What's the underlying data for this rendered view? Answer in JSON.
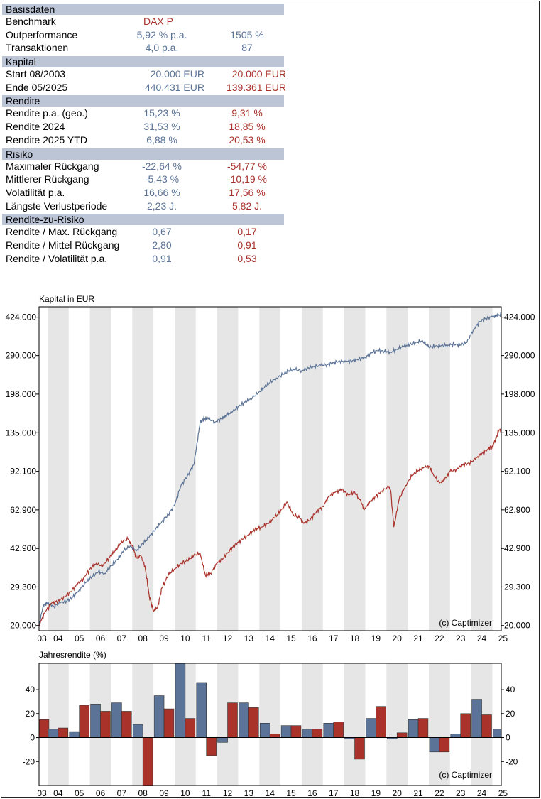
{
  "stats": {
    "sections": [
      {
        "title": "Basisdaten",
        "rows": [
          {
            "label": "Benchmark",
            "v1": "",
            "v2": "DAX P",
            "v2left": true
          },
          {
            "label": "Outperformance",
            "v1": "5,92 % p.a.",
            "v2": "1505 %",
            "v2blue": true
          },
          {
            "label": "Transaktionen",
            "v1": "4,0 p.a.",
            "v2": "87",
            "v2blue": true
          }
        ]
      },
      {
        "title": "Kapital",
        "rows": [
          {
            "label": "Start  08/2003",
            "v1": "20.000 EUR",
            "v2": "20.000 EUR",
            "right": true
          },
          {
            "label": "Ende  05/2025",
            "v1": "440.431 EUR",
            "v2": "139.361 EUR",
            "right": true
          }
        ]
      },
      {
        "title": "Rendite",
        "rows": [
          {
            "label": "Rendite p.a. (geo.)",
            "v1": "15,23 %",
            "v2": "9,31 %"
          },
          {
            "label": "Rendite 2024",
            "v1": "31,53 %",
            "v2": "18,85 %"
          },
          {
            "label": "Rendite 2025 YTD",
            "v1": "6,88 %",
            "v2": "20,53 %"
          }
        ]
      },
      {
        "title": "Risiko",
        "rows": [
          {
            "label": "Maximaler Rückgang",
            "v1": "-22,64 %",
            "v2": "-54,77 %"
          },
          {
            "label": "Mittlerer Rückgang",
            "v1": "-5,43 %",
            "v2": "-10,19 %"
          },
          {
            "label": "Volatilität p.a.",
            "v1": "16,66 %",
            "v2": "17,56 %"
          },
          {
            "label": "Längste Verlustperiode",
            "v1": "2,23 J.",
            "v2": "5,82 J."
          }
        ]
      },
      {
        "title": "Rendite-zu-Risiko",
        "rows": [
          {
            "label": "Rendite / Max. Rückgang",
            "v1": "0,67",
            "v2": "0,17"
          },
          {
            "label": "Rendite / Mittel Rückgang",
            "v1": "2,80",
            "v2": "0,91"
          },
          {
            "label": "Rendite / Volatilität p.a.",
            "v1": "0,91",
            "v2": "0,53"
          }
        ]
      }
    ]
  },
  "chart_data": [
    {
      "type": "line",
      "title": "Kapital in EUR",
      "watermark": "(c) Captimizer",
      "y_scale": "log",
      "y_ticks": [
        20000,
        29300,
        42900,
        62900,
        92100,
        135000,
        198000,
        290000,
        424000
      ],
      "y_tick_labels": [
        "20.000",
        "29.300",
        "42.900",
        "62.900",
        "92.100",
        "135.000",
        "198.000",
        "290.000",
        "424.000"
      ],
      "ylim": [
        19000,
        470000
      ],
      "xlim": [
        2003.6,
        2025.42
      ],
      "x_tick_labels": [
        "03",
        "04",
        "05",
        "06",
        "07",
        "08",
        "09",
        "10",
        "11",
        "12",
        "13",
        "14",
        "15",
        "16",
        "17",
        "18",
        "19",
        "20",
        "21",
        "22",
        "23",
        "24",
        "25"
      ],
      "grid": "alternating shaded years",
      "colors": {
        "strategy": "#5b7396",
        "benchmark": "#a9322b",
        "shade": "#e6e6e6"
      },
      "series": [
        {
          "key": "strategy",
          "x": [
            2003.6,
            2003.8,
            2004.0,
            2004.3,
            2004.6,
            2004.9,
            2005.2,
            2005.5,
            2005.8,
            2006.1,
            2006.4,
            2006.7,
            2007.0,
            2007.3,
            2007.6,
            2007.9,
            2008.2,
            2008.5,
            2008.8,
            2009.1,
            2009.4,
            2009.7,
            2010.0,
            2010.3,
            2010.6,
            2010.9,
            2011.1,
            2011.2,
            2011.4,
            2011.6,
            2011.9,
            2012.2,
            2012.4,
            2012.7,
            2013.0,
            2013.3,
            2013.6,
            2013.9,
            2014.2,
            2014.5,
            2014.8,
            2015.1,
            2015.4,
            2015.7,
            2016.0,
            2016.3,
            2016.6,
            2016.9,
            2017.2,
            2017.5,
            2017.8,
            2018.1,
            2018.4,
            2018.7,
            2019.0,
            2019.3,
            2019.6,
            2019.9,
            2020.2,
            2020.5,
            2020.8,
            2021.1,
            2021.4,
            2021.7,
            2022.0,
            2022.3,
            2022.6,
            2022.9,
            2023.2,
            2023.5,
            2023.8,
            2024.1,
            2024.4,
            2024.7,
            2025.0,
            2025.2,
            2025.42
          ],
          "y": [
            20000,
            24500,
            25000,
            24200,
            25000,
            25500,
            26500,
            28500,
            30500,
            32500,
            34000,
            33500,
            36000,
            38500,
            42000,
            44000,
            42000,
            45000,
            48000,
            52000,
            56000,
            60000,
            66000,
            80000,
            88000,
            98000,
            128000,
            150000,
            155000,
            155000,
            150000,
            155000,
            160000,
            165000,
            175000,
            182000,
            190000,
            198000,
            210000,
            222000,
            232000,
            240000,
            250000,
            252000,
            250000,
            256000,
            260000,
            263000,
            265000,
            270000,
            275000,
            272000,
            276000,
            280000,
            285000,
            298000,
            305000,
            302000,
            300000,
            308000,
            318000,
            323000,
            330000,
            336000,
            315000,
            318000,
            320000,
            322000,
            324000,
            322000,
            330000,
            375000,
            405000,
            420000,
            425000,
            430000,
            435000
          ]
        },
        {
          "key": "benchmark",
          "x": [
            2003.6,
            2003.9,
            2004.2,
            2004.5,
            2004.8,
            2005.1,
            2005.4,
            2005.7,
            2006.0,
            2006.3,
            2006.6,
            2006.9,
            2007.2,
            2007.5,
            2007.8,
            2008.0,
            2008.2,
            2008.4,
            2008.6,
            2008.8,
            2009.0,
            2009.2,
            2009.4,
            2009.7,
            2010.0,
            2010.3,
            2010.6,
            2010.9,
            2011.2,
            2011.45,
            2011.7,
            2012.0,
            2012.3,
            2012.6,
            2012.9,
            2013.2,
            2013.5,
            2013.8,
            2014.1,
            2014.4,
            2014.7,
            2015.0,
            2015.3,
            2015.6,
            2015.9,
            2016.1,
            2016.4,
            2016.7,
            2017.0,
            2017.3,
            2017.6,
            2017.9,
            2018.2,
            2018.5,
            2018.8,
            2018.95,
            2019.2,
            2019.5,
            2019.8,
            2020.1,
            2020.2,
            2020.35,
            2020.6,
            2020.9,
            2021.2,
            2021.5,
            2021.8,
            2022.0,
            2022.2,
            2022.5,
            2022.75,
            2023.0,
            2023.3,
            2023.6,
            2023.9,
            2024.2,
            2024.5,
            2024.8,
            2025.0,
            2025.15,
            2025.3,
            2025.42
          ],
          "y": [
            20000,
            23000,
            25000,
            25500,
            26500,
            28000,
            30000,
            32000,
            35000,
            37000,
            36000,
            39000,
            42000,
            46000,
            47000,
            44000,
            39000,
            40000,
            36000,
            27000,
            23000,
            24000,
            29000,
            33000,
            35000,
            37000,
            38000,
            40000,
            41000,
            33000,
            33500,
            37000,
            39000,
            42000,
            45000,
            47000,
            49000,
            52000,
            53000,
            55000,
            58000,
            62000,
            68000,
            60000,
            58000,
            55000,
            57000,
            62000,
            65000,
            72000,
            75000,
            77000,
            73000,
            75000,
            68000,
            63000,
            68000,
            72000,
            76000,
            79000,
            76000,
            53000,
            70000,
            80000,
            88000,
            93000,
            96000,
            97000,
            90000,
            82000,
            85000,
            92000,
            94000,
            98000,
            100000,
            104000,
            110000,
            115000,
            118000,
            126000,
            138000,
            139000
          ]
        }
      ]
    },
    {
      "type": "bar",
      "title": "Jahresrendite (%)",
      "watermark": "(c) Captimizer",
      "categories": [
        "03",
        "04",
        "05",
        "06",
        "07",
        "08",
        "09",
        "10",
        "11",
        "12",
        "13",
        "14",
        "15",
        "16",
        "17",
        "18",
        "19",
        "20",
        "21",
        "22",
        "23",
        "24",
        "25"
      ],
      "ylim": [
        -40,
        62
      ],
      "y_ticks": [
        -20,
        0,
        20,
        40
      ],
      "series": [
        {
          "key": "strategy",
          "values": [
            19,
            7,
            5,
            28,
            29,
            11,
            35,
            62,
            46,
            -4,
            29,
            12,
            10,
            7,
            12,
            -1,
            16,
            -1,
            15,
            -12,
            3,
            32,
            7
          ]
        },
        {
          "key": "benchmark",
          "values": [
            15,
            8,
            27,
            22,
            22,
            -40,
            24,
            16,
            -15,
            29,
            25,
            3,
            10,
            7,
            13,
            -18,
            26,
            4,
            16,
            -12,
            20,
            19,
            21
          ]
        }
      ]
    }
  ]
}
